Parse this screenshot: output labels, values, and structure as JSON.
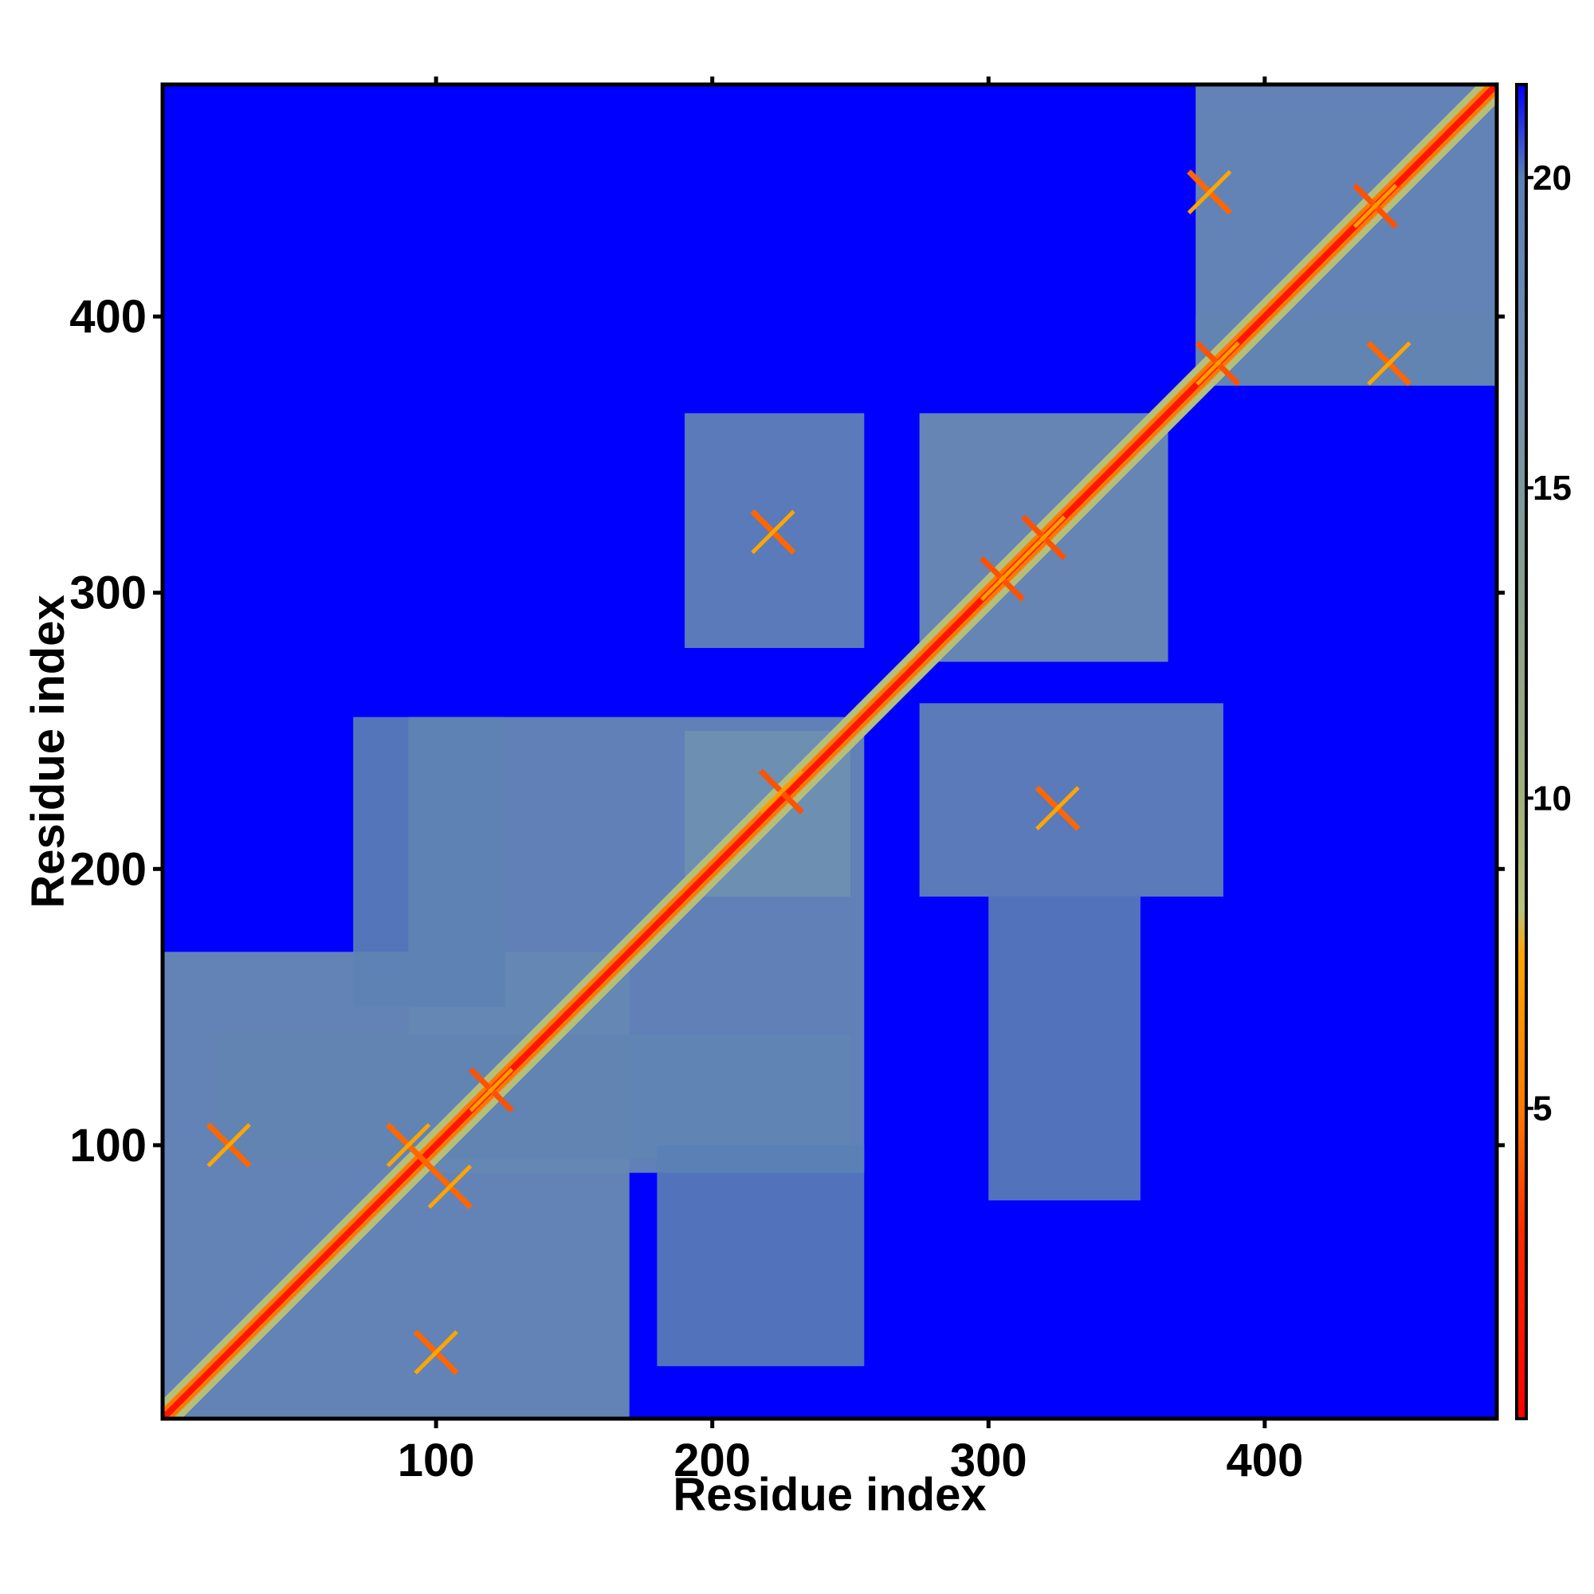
{
  "chart_data": {
    "type": "heatmap",
    "title": "",
    "xlabel": "Residue index",
    "ylabel": "Residue index",
    "xlim": [
      1,
      484
    ],
    "ylim": [
      1,
      484
    ],
    "xticks": [
      100,
      200,
      300,
      400
    ],
    "yticks": [
      100,
      200,
      300,
      400
    ],
    "grid": false,
    "colorbar": {
      "position": "right",
      "range": [
        0,
        21.5
      ],
      "ticks": [
        5,
        10,
        15,
        20
      ],
      "tick_labels": [
        "5",
        "10",
        "15",
        "20"
      ],
      "color_stops": [
        {
          "value": 0,
          "color": "#ff0000"
        },
        {
          "value": 3,
          "color": "#ff2a00"
        },
        {
          "value": 5,
          "color": "#ff7a00"
        },
        {
          "value": 7.5,
          "color": "#ffa500"
        },
        {
          "value": 8.2,
          "color": "#b9c27a"
        },
        {
          "value": 10,
          "color": "#a0b07a"
        },
        {
          "value": 13,
          "color": "#8aa28a"
        },
        {
          "value": 17,
          "color": "#6e8fb0"
        },
        {
          "value": 20,
          "color": "#5b7fb5"
        },
        {
          "value": 21.5,
          "color": "#0000ff"
        }
      ]
    },
    "background_value": 21.5,
    "diagonal": {
      "from": 1,
      "to": 484,
      "value": 1.5
    },
    "domains": [
      {
        "start": 1,
        "end": 170,
        "value": 18
      },
      {
        "start": 90,
        "end": 255,
        "value": 18.5
      },
      {
        "start": 190,
        "end": 250,
        "value": 17
      },
      {
        "start": 275,
        "end": 365,
        "value": 17.5
      },
      {
        "start": 375,
        "end": 484,
        "value": 18
      }
    ],
    "off_diagonal_blocks": [
      {
        "x": [
          20,
          250
        ],
        "y": [
          95,
          140
        ],
        "value": 19
      },
      {
        "x": [
          190,
          255
        ],
        "y": [
          280,
          365
        ],
        "value": 18.5
      },
      {
        "x": [
          275,
          385
        ],
        "y": [
          190,
          260
        ],
        "value": 18.5
      },
      {
        "x": [
          375,
          484
        ],
        "y": [
          375,
          400
        ],
        "value": 19
      },
      {
        "x": [
          300,
          355
        ],
        "y": [
          80,
          190
        ],
        "value": 20
      },
      {
        "x": [
          70,
          125
        ],
        "y": [
          150,
          255
        ],
        "value": 19.5
      },
      {
        "x": [
          180,
          255
        ],
        "y": [
          20,
          100
        ],
        "value": 20
      }
    ],
    "contacts": [
      {
        "x": 25,
        "y": 100,
        "value": 4.5
      },
      {
        "x": 90,
        "y": 100,
        "value": 4.5
      },
      {
        "x": 100,
        "y": 25,
        "value": 4.5
      },
      {
        "x": 105,
        "y": 85,
        "value": 4.5
      },
      {
        "x": 120,
        "y": 120,
        "value": 4
      },
      {
        "x": 225,
        "y": 228,
        "value": 4
      },
      {
        "x": 222,
        "y": 322,
        "value": 4.5
      },
      {
        "x": 305,
        "y": 305,
        "value": 4
      },
      {
        "x": 320,
        "y": 320,
        "value": 4
      },
      {
        "x": 325,
        "y": 222,
        "value": 4.5
      },
      {
        "x": 380,
        "y": 445,
        "value": 4.5
      },
      {
        "x": 383,
        "y": 383,
        "value": 4
      },
      {
        "x": 440,
        "y": 440,
        "value": 4
      },
      {
        "x": 445,
        "y": 383,
        "value": 4.5
      }
    ]
  }
}
